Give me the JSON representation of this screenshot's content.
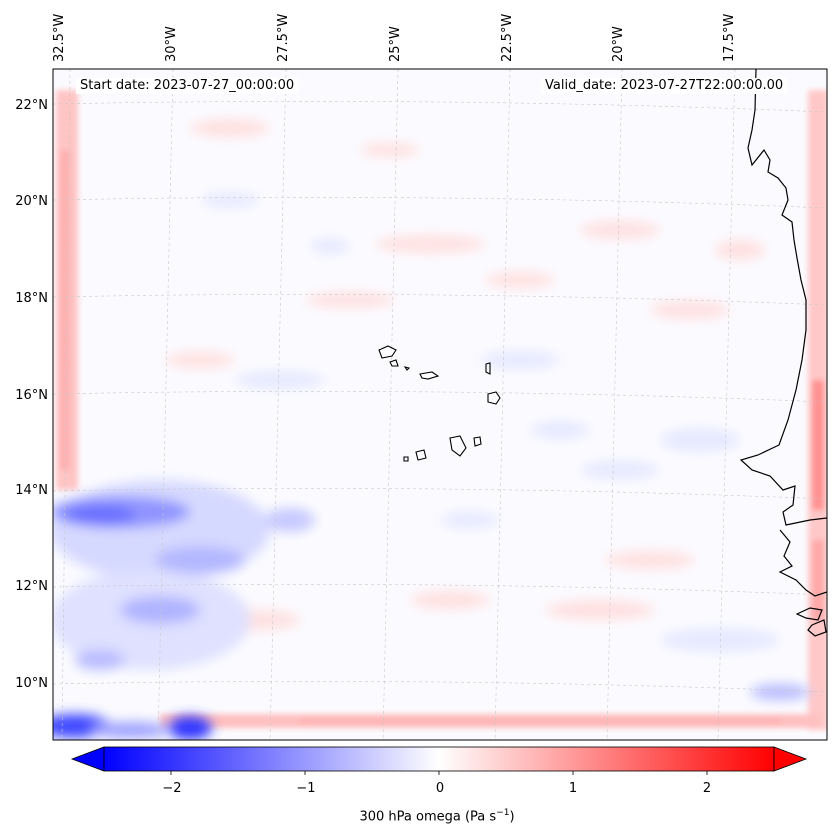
{
  "header": {
    "start_date": "Start date: 2023-07-27_00:00:00",
    "valid_date": "Valid_date: 2023-07-27T22:00:00.00"
  },
  "map": {
    "lon_labels": [
      "32.5°W",
      "30°W",
      "27.5°W",
      "25°W",
      "22.5°W",
      "20°W",
      "17.5°W"
    ],
    "lat_labels": [
      "22°N",
      "20°N",
      "18°N",
      "16°N",
      "14°N",
      "12°N",
      "10°N"
    ],
    "colors": {
      "negative": "#0000ff",
      "zero": "#ffffff",
      "positive": "#ff0000",
      "coast": "#000000"
    }
  },
  "colorbar": {
    "ticks": [
      "−2",
      "−1",
      "0",
      "1",
      "2"
    ],
    "tick_values": [
      -2,
      -1,
      0,
      1,
      2
    ],
    "range": [
      -2.5,
      2.5
    ],
    "label_main": "300 hPa omega (Pa s",
    "label_sup": "−1",
    "label_end": ")"
  }
}
